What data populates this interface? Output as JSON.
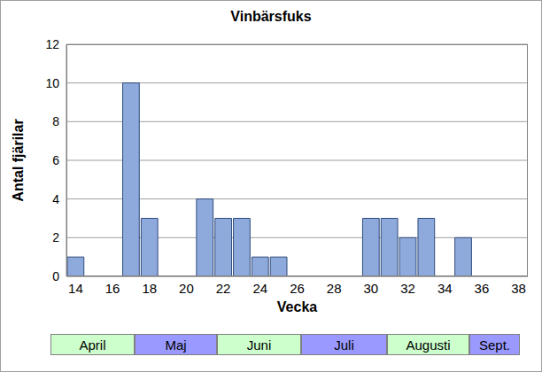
{
  "chart_data": {
    "type": "bar",
    "title": "Vinbärsfuks",
    "x_label": "Vecka",
    "y_label": "Antal fjärilar",
    "x": [
      14,
      17,
      18,
      21,
      22,
      23,
      24,
      25,
      30,
      31,
      32,
      33,
      35
    ],
    "values": [
      1,
      10,
      3,
      4,
      3,
      3,
      1,
      1,
      3,
      3,
      2,
      3,
      2
    ],
    "color": "#8eaadc",
    "xlim": [
      13.5,
      38.5
    ],
    "xticks": [
      14,
      16,
      18,
      20,
      22,
      24,
      26,
      28,
      30,
      32,
      34,
      36,
      38
    ],
    "ylim": [
      0,
      12
    ],
    "yticks": [
      0,
      2,
      4,
      6,
      8,
      10,
      12
    ],
    "grid": true,
    "month_bands": [
      {
        "label": "April",
        "color": "#ccffcc"
      },
      {
        "label": "Maj",
        "color": "#9999ff"
      },
      {
        "label": "Juni",
        "color": "#ccffcc"
      },
      {
        "label": "Juli",
        "color": "#9999ff"
      },
      {
        "label": "Augusti",
        "color": "#ccffcc"
      },
      {
        "label": "Sept.",
        "color": "#9999ff"
      }
    ]
  }
}
